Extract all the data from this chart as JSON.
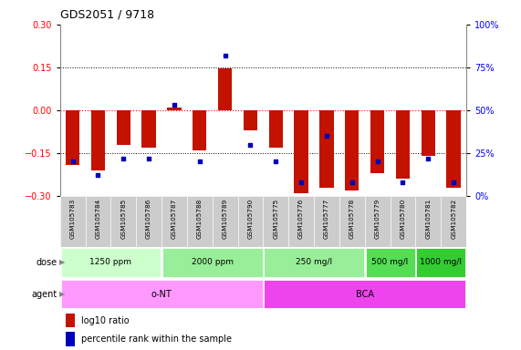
{
  "title": "GDS2051 / 9718",
  "samples": [
    "GSM105783",
    "GSM105784",
    "GSM105785",
    "GSM105786",
    "GSM105787",
    "GSM105788",
    "GSM105789",
    "GSM105790",
    "GSM105775",
    "GSM105776",
    "GSM105777",
    "GSM105778",
    "GSM105779",
    "GSM105780",
    "GSM105781",
    "GSM105782"
  ],
  "log10_ratio": [
    -0.19,
    -0.21,
    -0.12,
    -0.13,
    0.01,
    -0.14,
    0.145,
    -0.07,
    -0.13,
    -0.29,
    -0.27,
    -0.28,
    -0.22,
    -0.24,
    -0.16,
    -0.27
  ],
  "percentile_rank": [
    20,
    12,
    22,
    22,
    53,
    20,
    82,
    30,
    20,
    8,
    35,
    8,
    20,
    8,
    22,
    8
  ],
  "ylim_left": [
    -0.3,
    0.3
  ],
  "ylim_right": [
    0,
    100
  ],
  "yticks_left": [
    -0.3,
    -0.15,
    0.0,
    0.15,
    0.3
  ],
  "yticks_right": [
    0,
    25,
    50,
    75,
    100
  ],
  "ytick_labels_right": [
    "0%",
    "25%",
    "50%",
    "75%",
    "100%"
  ],
  "hlines_black": [
    0.15,
    -0.15
  ],
  "hline_red": 0.0,
  "bar_color": "#C41200",
  "dot_color": "#0000BB",
  "dose_groups": [
    {
      "label": "1250 ppm",
      "start": 0,
      "end": 4,
      "color": "#CCFFCC"
    },
    {
      "label": "2000 ppm",
      "start": 4,
      "end": 8,
      "color": "#99EE99"
    },
    {
      "label": "250 mg/l",
      "start": 8,
      "end": 12,
      "color": "#99EE99"
    },
    {
      "label": "500 mg/l",
      "start": 12,
      "end": 14,
      "color": "#55DD55"
    },
    {
      "label": "1000 mg/l",
      "start": 14,
      "end": 16,
      "color": "#33CC33"
    }
  ],
  "agent_groups": [
    {
      "label": "o-NT",
      "start": 0,
      "end": 8,
      "color": "#FF99FF"
    },
    {
      "label": "BCA",
      "start": 8,
      "end": 16,
      "color": "#EE44EE"
    }
  ],
  "sample_bg_color": "#CCCCCC",
  "legend_items": [
    {
      "color": "#C41200",
      "label": "log10 ratio"
    },
    {
      "color": "#0000BB",
      "label": "percentile rank within the sample"
    }
  ]
}
